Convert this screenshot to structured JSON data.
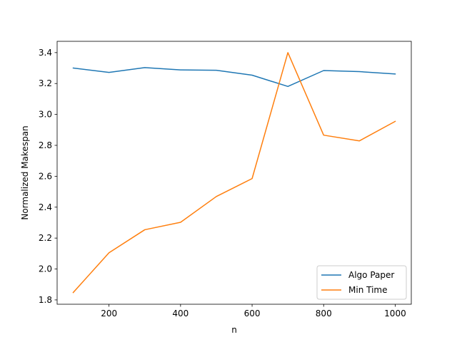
{
  "chart_data": {
    "type": "line",
    "title": "",
    "xlabel": "n",
    "ylabel": "Normalized Makespan",
    "x": [
      100,
      200,
      300,
      400,
      500,
      600,
      700,
      800,
      900,
      1000
    ],
    "xticks": [
      "200",
      "400",
      "600",
      "800",
      "1000"
    ],
    "yticks": [
      "1.8",
      "2.0",
      "2.2",
      "2.4",
      "2.6",
      "2.8",
      "3.0",
      "3.2",
      "3.4"
    ],
    "xlim": [
      55,
      1045
    ],
    "ylim": [
      1.772,
      3.473
    ],
    "grid": false,
    "legend_position": "lower-right",
    "series": [
      {
        "name": "Algo Paper",
        "color": "#1f77b4",
        "values": [
          3.3,
          3.272,
          3.303,
          3.288,
          3.286,
          3.254,
          3.181,
          3.284,
          3.277,
          3.262
        ]
      },
      {
        "name": "Min Time",
        "color": "#ff7f0e",
        "values": [
          1.848,
          2.105,
          2.254,
          2.302,
          2.469,
          2.585,
          3.4,
          2.866,
          2.829,
          2.955
        ]
      }
    ]
  }
}
